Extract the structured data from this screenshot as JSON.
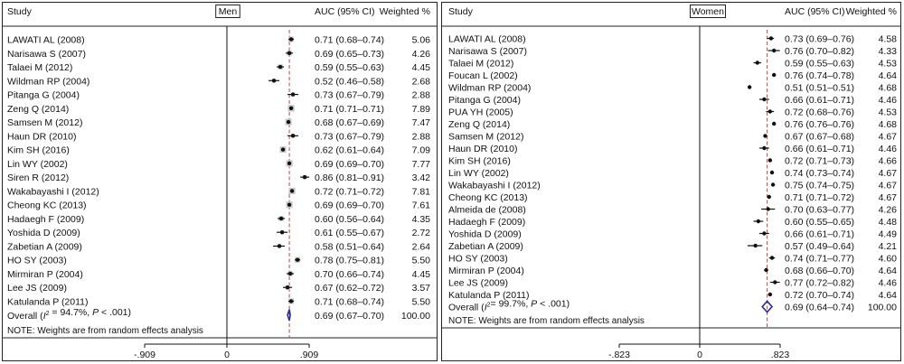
{
  "chart_data": [
    {
      "type": "forest",
      "panel_label": "Men",
      "headers": {
        "study": "Study",
        "auc": "AUC (95% CI)",
        "weight": "Weighted %"
      },
      "xlim": [
        -0.909,
        0.909
      ],
      "xticks": [
        {
          "value": -0.909,
          "label": "-.909"
        },
        {
          "value": 0,
          "label": "0"
        },
        {
          "value": 0.909,
          "label": ".909"
        }
      ],
      "reference_line": 0.69,
      "studies": [
        {
          "name": "LAWATI AL (2008)",
          "est": 0.71,
          "lo": 0.68,
          "hi": 0.74,
          "ci": "0.71 (0.68–0.74)",
          "weight": 5.06,
          "weight_label": "5.06"
        },
        {
          "name": "Narisawa S (2007)",
          "est": 0.69,
          "lo": 0.65,
          "hi": 0.73,
          "ci": "0.69 (0.65–0.73)",
          "weight": 4.26,
          "weight_label": "4.26"
        },
        {
          "name": "Talaei M (2012)",
          "est": 0.59,
          "lo": 0.55,
          "hi": 0.63,
          "ci": "0.59 (0.55–0.63)",
          "weight": 4.45,
          "weight_label": "4.45"
        },
        {
          "name": "Wildman RP (2004)",
          "est": 0.52,
          "lo": 0.46,
          "hi": 0.58,
          "ci": "0.52 (0.46–0.58)",
          "weight": 2.68,
          "weight_label": "2.68"
        },
        {
          "name": "Pitanga G (2004)",
          "est": 0.73,
          "lo": 0.67,
          "hi": 0.79,
          "ci": "0.73 (0.67–0.79)",
          "weight": 2.88,
          "weight_label": "2.88"
        },
        {
          "name": "Zeng Q (2014)",
          "est": 0.71,
          "lo": 0.71,
          "hi": 0.71,
          "ci": "0.71 (0.71–0.71)",
          "weight": 7.89,
          "weight_label": "7.89"
        },
        {
          "name": "Samsen M (2012)",
          "est": 0.68,
          "lo": 0.67,
          "hi": 0.69,
          "ci": "0.68 (0.67–0.69)",
          "weight": 7.47,
          "weight_label": "7.47"
        },
        {
          "name": "Haun DR (2010)",
          "est": 0.73,
          "lo": 0.67,
          "hi": 0.79,
          "ci": "0.73 (0.67–0.79)",
          "weight": 2.88,
          "weight_label": "2.88"
        },
        {
          "name": "Kim SH (2016)",
          "est": 0.62,
          "lo": 0.61,
          "hi": 0.64,
          "ci": "0.62 (0.61–0.64)",
          "weight": 7.09,
          "weight_label": "7.09"
        },
        {
          "name": "Lin WY (2002)",
          "est": 0.69,
          "lo": 0.69,
          "hi": 0.7,
          "ci": "0.69 (0.69–0.70)",
          "weight": 7.77,
          "weight_label": "7.77"
        },
        {
          "name": "Siren R (2012)",
          "est": 0.86,
          "lo": 0.81,
          "hi": 0.91,
          "ci": "0.86 (0.81–0.91)",
          "weight": 3.42,
          "weight_label": "3.42"
        },
        {
          "name": "Wakabayashi I (2012)",
          "est": 0.72,
          "lo": 0.71,
          "hi": 0.72,
          "ci": "0.72 (0.71–0.72)",
          "weight": 7.81,
          "weight_label": "7.81"
        },
        {
          "name": "Cheong KC (2013)",
          "est": 0.69,
          "lo": 0.69,
          "hi": 0.7,
          "ci": "0.69 (0.69–0.70)",
          "weight": 7.61,
          "weight_label": "7.61"
        },
        {
          "name": "Hadaegh F (2009)",
          "est": 0.6,
          "lo": 0.56,
          "hi": 0.64,
          "ci": "0.60 (0.56–0.64)",
          "weight": 4.35,
          "weight_label": "4.35"
        },
        {
          "name": "Yoshida D (2009)",
          "est": 0.61,
          "lo": 0.55,
          "hi": 0.67,
          "ci": "0.61 (0.55–0.67)",
          "weight": 2.72,
          "weight_label": "2.72"
        },
        {
          "name": "Zabetian A (2009)",
          "est": 0.58,
          "lo": 0.51,
          "hi": 0.64,
          "ci": "0.58 (0.51–0.64)",
          "weight": 2.64,
          "weight_label": "2.64"
        },
        {
          "name": "HO SY (2003)",
          "est": 0.78,
          "lo": 0.75,
          "hi": 0.81,
          "ci": "0.78 (0.75–0.81)",
          "weight": 5.5,
          "weight_label": "5.50"
        },
        {
          "name": "Mirmiran P (2004)",
          "est": 0.7,
          "lo": 0.66,
          "hi": 0.74,
          "ci": "0.70 (0.66–0.74)",
          "weight": 4.45,
          "weight_label": "4.45"
        },
        {
          "name": "Lee JS (2009)",
          "est": 0.67,
          "lo": 0.62,
          "hi": 0.72,
          "ci": "0.67 (0.62–0.72)",
          "weight": 3.57,
          "weight_label": "3.57"
        },
        {
          "name": "Katulanda P (2011)",
          "est": 0.71,
          "lo": 0.68,
          "hi": 0.74,
          "ci": "0.71 (0.68–0.74)",
          "weight": 5.5,
          "weight_label": "5.50"
        }
      ],
      "overall": {
        "prefix": "Overall  (",
        "i2_symbol": "I",
        "i2_sup": "2",
        "i2_value": " = 94.7%, ",
        "p_symbol": "P",
        "p_text": " < .001)",
        "est": 0.69,
        "lo": 0.67,
        "hi": 0.7,
        "ci": "0.69 (0.67–0.70)",
        "weight_label": "100.00"
      },
      "note": "NOTE: Weights are from random effects analysis"
    },
    {
      "type": "forest",
      "panel_label": "Women",
      "headers": {
        "study": "Study",
        "auc": "AUC (95% CI)",
        "weight": "Weighted %"
      },
      "xlim": [
        -0.823,
        0.823
      ],
      "xticks": [
        {
          "value": -0.823,
          "label": "-.823"
        },
        {
          "value": 0,
          "label": "0"
        },
        {
          "value": 0.823,
          "label": ".823"
        }
      ],
      "reference_line": 0.69,
      "studies": [
        {
          "name": "LAWATI AL (2008)",
          "est": 0.73,
          "lo": 0.69,
          "hi": 0.76,
          "ci": "0.73 (0.69–0.76)",
          "weight": 4.58,
          "weight_label": "4.58"
        },
        {
          "name": "Narisawa S (2007)",
          "est": 0.76,
          "lo": 0.7,
          "hi": 0.82,
          "ci": "0.76 (0.70–0.82)",
          "weight": 4.33,
          "weight_label": "4.33"
        },
        {
          "name": "Talaei M (2012)",
          "est": 0.59,
          "lo": 0.55,
          "hi": 0.63,
          "ci": "0.59 (0.55–0.63)",
          "weight": 4.53,
          "weight_label": "4.53"
        },
        {
          "name": "Foucan L (2002)",
          "est": 0.76,
          "lo": 0.74,
          "hi": 0.78,
          "ci": "0.76 (0.74–0.78)",
          "weight": 4.64,
          "weight_label": "4.64"
        },
        {
          "name": "Wildman RP (2004)",
          "est": 0.51,
          "lo": 0.51,
          "hi": 0.51,
          "ci": "0.51 (0.51–0.51)",
          "weight": 4.68,
          "weight_label": "4.68"
        },
        {
          "name": "Pitanga G (2004)",
          "est": 0.66,
          "lo": 0.61,
          "hi": 0.71,
          "ci": "0.66 (0.61–0.71)",
          "weight": 4.46,
          "weight_label": "4.46"
        },
        {
          "name": "PUA YH (2005)",
          "est": 0.72,
          "lo": 0.68,
          "hi": 0.76,
          "ci": "0.72 (0.68–0.76)",
          "weight": 4.53,
          "weight_label": "4.53"
        },
        {
          "name": "Zeng Q (2014)",
          "est": 0.76,
          "lo": 0.76,
          "hi": 0.76,
          "ci": "0.76 (0.76–0.76)",
          "weight": 4.68,
          "weight_label": "4.68"
        },
        {
          "name": "Samsen M (2012)",
          "est": 0.67,
          "lo": 0.67,
          "hi": 0.68,
          "ci": "0.67 (0.67–0.68)",
          "weight": 4.67,
          "weight_label": "4.67"
        },
        {
          "name": "Haun DR (2010)",
          "est": 0.66,
          "lo": 0.61,
          "hi": 0.71,
          "ci": "0.66 (0.61–0.71)",
          "weight": 4.46,
          "weight_label": "4.46"
        },
        {
          "name": "Kim SH (2016)",
          "est": 0.72,
          "lo": 0.71,
          "hi": 0.73,
          "ci": "0.72 (0.71–0.73)",
          "weight": 4.66,
          "weight_label": "4.66"
        },
        {
          "name": "Lin WY (2002)",
          "est": 0.74,
          "lo": 0.73,
          "hi": 0.74,
          "ci": "0.74 (0.73–0.74)",
          "weight": 4.67,
          "weight_label": "4.67"
        },
        {
          "name": "Wakabayashi I (2012)",
          "est": 0.75,
          "lo": 0.74,
          "hi": 0.75,
          "ci": "0.75 (0.74–0.75)",
          "weight": 4.67,
          "weight_label": "4.67"
        },
        {
          "name": "Cheong KC (2013)",
          "est": 0.71,
          "lo": 0.71,
          "hi": 0.72,
          "ci": "0.71 (0.71–0.72)",
          "weight": 4.67,
          "weight_label": "4.67"
        },
        {
          "name": "Almeida de (2008)",
          "est": 0.7,
          "lo": 0.63,
          "hi": 0.77,
          "ci": "0.70 (0.63–0.77)",
          "weight": 4.26,
          "weight_label": "4.26"
        },
        {
          "name": "Hadaegh F (2009)",
          "est": 0.6,
          "lo": 0.55,
          "hi": 0.65,
          "ci": "0.60 (0.55–0.65)",
          "weight": 4.48,
          "weight_label": "4.48"
        },
        {
          "name": "Yoshida D (2009)",
          "est": 0.66,
          "lo": 0.61,
          "hi": 0.71,
          "ci": "0.66 (0.61–0.71)",
          "weight": 4.49,
          "weight_label": "4.49"
        },
        {
          "name": "Zabetian A (2009)",
          "est": 0.57,
          "lo": 0.49,
          "hi": 0.64,
          "ci": "0.57 (0.49–0.64)",
          "weight": 4.21,
          "weight_label": "4.21"
        },
        {
          "name": "HO SY (2003)",
          "est": 0.74,
          "lo": 0.71,
          "hi": 0.77,
          "ci": "0.74 (0.71–0.77)",
          "weight": 4.6,
          "weight_label": "4.60"
        },
        {
          "name": "Mirmiran P (2004)",
          "est": 0.68,
          "lo": 0.66,
          "hi": 0.7,
          "ci": "0.68 (0.66–0.70)",
          "weight": 4.64,
          "weight_label": "4.64"
        },
        {
          "name": "Lee JS (2009)",
          "est": 0.77,
          "lo": 0.72,
          "hi": 0.82,
          "ci": "0.77 (0.72–0.82)",
          "weight": 4.46,
          "weight_label": "4.46"
        },
        {
          "name": "Katulanda P (2011)",
          "est": 0.72,
          "lo": 0.7,
          "hi": 0.74,
          "ci": "0.72 (0.70–0.74)",
          "weight": 4.64,
          "weight_label": "4.64"
        }
      ],
      "overall": {
        "prefix": "Overall  (",
        "i2_symbol": "I",
        "i2_sup": "2",
        "i2_value": "= 99.7%, ",
        "p_symbol": "P",
        "p_text": " < .001)",
        "est": 0.69,
        "lo": 0.64,
        "hi": 0.74,
        "ci": "0.69 (0.64–0.74)",
        "weight_label": "100.00"
      },
      "note": "NOTE: Weights are from random effects analysis"
    }
  ]
}
